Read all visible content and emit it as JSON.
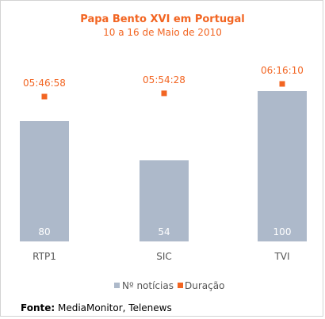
{
  "colors": {
    "bar": "#adb9ca",
    "marker": "#f26522",
    "title": "#f26522",
    "text": "#555555",
    "bar_text": "#ffffff",
    "source": "#000000"
  },
  "chart_data": {
    "type": "bar",
    "title": "Papa Bento XVI em Portugal",
    "subtitle": "10 a 16 de Maio de 2010",
    "categories": [
      "RTP1",
      "SIC",
      "TVI"
    ],
    "series": [
      {
        "name": "Nº notícias",
        "type": "bar",
        "values": [
          80,
          54,
          100
        ]
      },
      {
        "name": "Duração",
        "type": "scatter",
        "values_seconds": [
          20818,
          21268,
          22570
        ],
        "labels": [
          "05:46:58",
          "05:54:28",
          "06:16:10"
        ]
      }
    ],
    "ylim_bar": [
      0,
      100
    ],
    "grid": false,
    "legend_position": "bottom"
  },
  "source": {
    "label": "Fonte:",
    "text": " MediaMonitor, Telenews"
  }
}
